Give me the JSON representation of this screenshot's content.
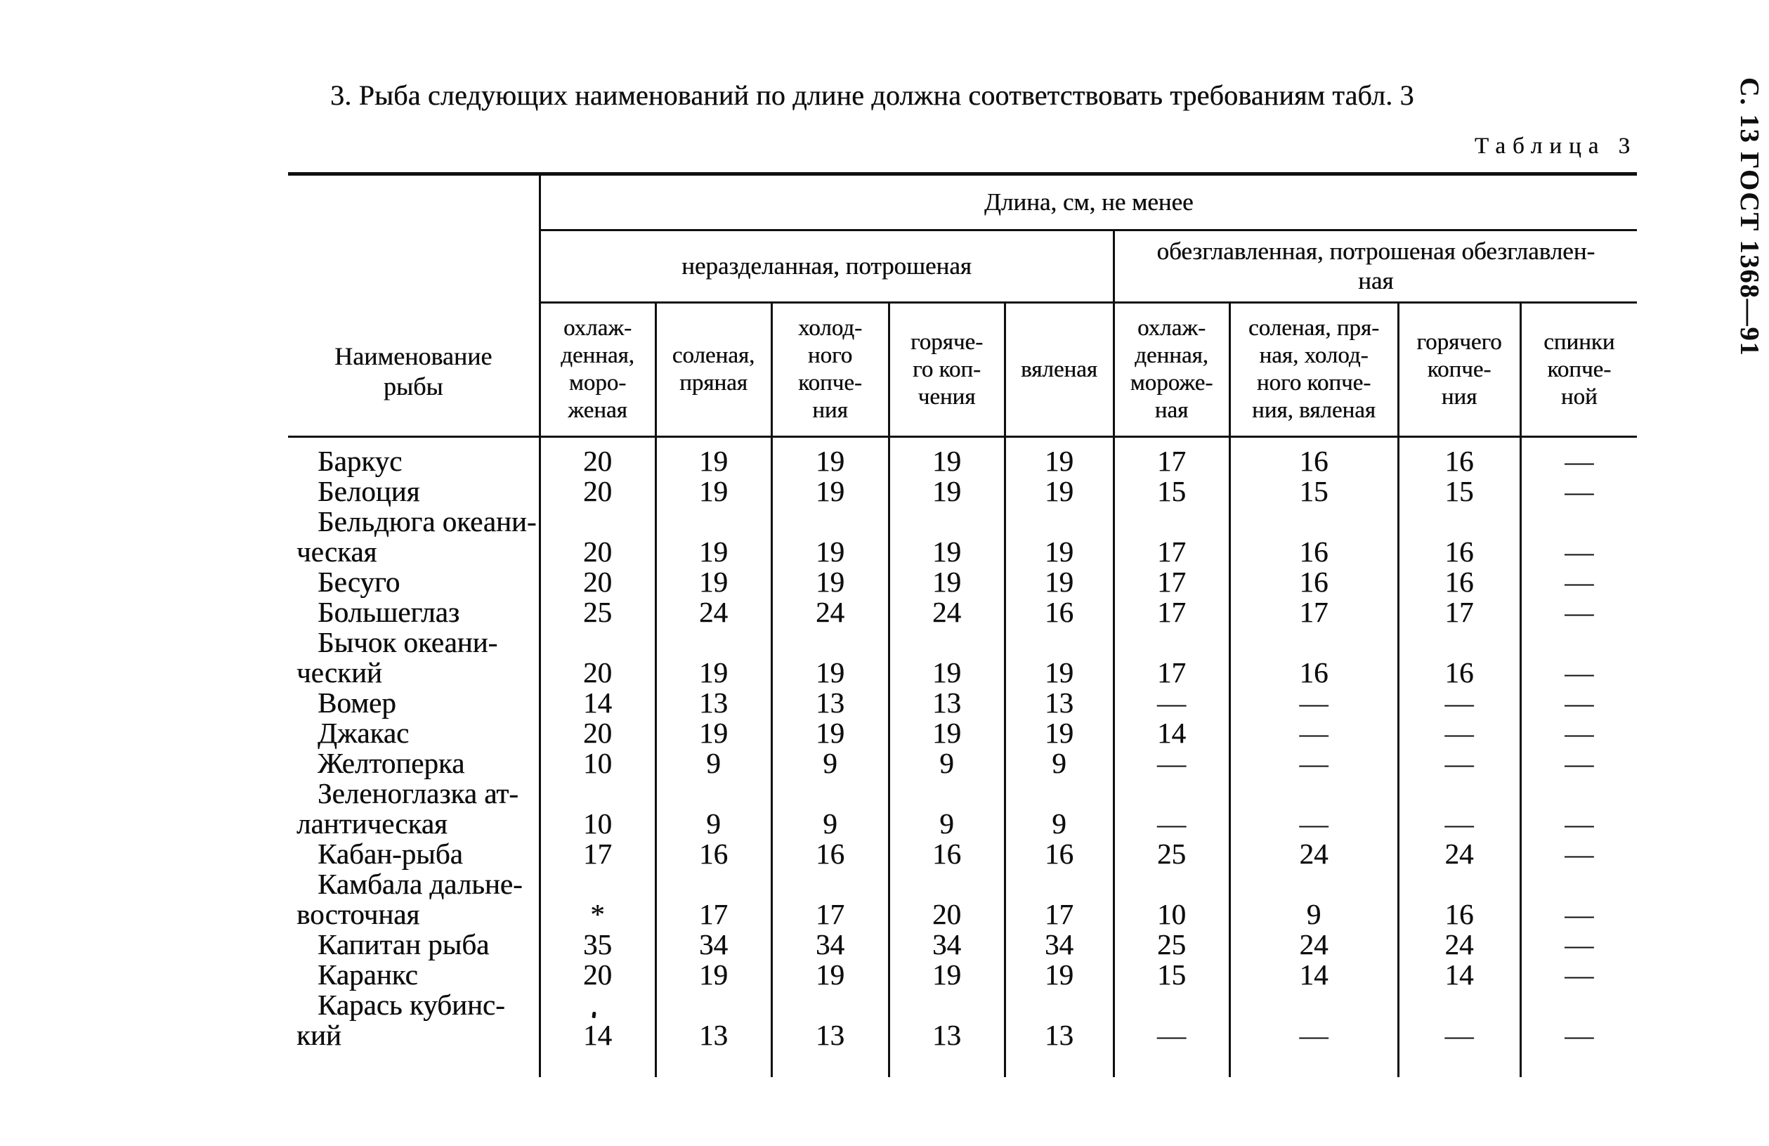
{
  "page": {
    "heading": "3. Рыба следующих наименований по длине должна соответствовать требованиям табл. 3",
    "table_label": "Таблица 3",
    "side_label": "С. 13 ГОСТ 1368—91"
  },
  "table": {
    "name_col_header": "Наименование\nрыбы",
    "length_header": "Длина, см, не менее",
    "groups": [
      {
        "label": "неразделанная, потрошеная",
        "span": 5
      },
      {
        "label": "обезглавленная, потрошеная  обезглавлен-\nная",
        "span": 4
      }
    ],
    "columns": [
      "охлаж-\nденная,\nморо-\nженая",
      "соленая,\nпряная",
      "холод-\nного\nкопче-\nния",
      "горяче-\nго коп-\nчения",
      "вяленая",
      "охлаж-\nденная,\nмороже-\nная",
      "соленая, пря-\nная, холод-\nного копче-\nния, вяленая",
      "горячего\nкопче-\nния",
      "спинки\nкопче-\nной"
    ],
    "rows": [
      {
        "name": "Баркус",
        "values": [
          "20",
          "19",
          "19",
          "19",
          "19",
          "17",
          "16",
          "16",
          "—"
        ]
      },
      {
        "name": "Белоция",
        "values": [
          "20",
          "19",
          "19",
          "19",
          "19",
          "15",
          "15",
          "15",
          "—"
        ]
      },
      {
        "name": "Бельдюга океани-\nческая",
        "values": [
          "20",
          "19",
          "19",
          "19",
          "19",
          "17",
          "16",
          "16",
          "—"
        ]
      },
      {
        "name": "Бесуго",
        "values": [
          "20",
          "19",
          "19",
          "19",
          "19",
          "17",
          "16",
          "16",
          "—"
        ]
      },
      {
        "name": "Большеглаз",
        "values": [
          "25",
          "24",
          "24",
          "24",
          "16",
          "17",
          "17",
          "17",
          "—"
        ]
      },
      {
        "name": "Бычок океани-\nческий",
        "values": [
          "20",
          "19",
          "19",
          "19",
          "19",
          "17",
          "16",
          "16",
          "—"
        ]
      },
      {
        "name": "Вомер",
        "values": [
          "14",
          "13",
          "13",
          "13",
          "13",
          "—",
          "—",
          "—",
          "—"
        ]
      },
      {
        "name": "Джакас",
        "values": [
          "20",
          "19",
          "19",
          "19",
          "19",
          "14",
          "—",
          "—",
          "—"
        ]
      },
      {
        "name": "Желтоперка",
        "values": [
          "10",
          "9",
          "9",
          "9",
          "9",
          "—",
          "—",
          "—",
          "—"
        ]
      },
      {
        "name": "Зеленоглазка ат-\nлантическая",
        "values": [
          "10",
          "9",
          "9",
          "9",
          "9",
          "—",
          "—",
          "—",
          "—"
        ]
      },
      {
        "name": "Кабан-рыба",
        "values": [
          "17",
          "16",
          "16",
          "16",
          "16",
          "25",
          "24",
          "24",
          "—"
        ]
      },
      {
        "name": "Камбала дальне-\nвосточная",
        "values": [
          "*",
          "17",
          "17",
          "20",
          "17",
          "10",
          "9",
          "16",
          "—"
        ]
      },
      {
        "name": "Капитан рыба",
        "values": [
          "35",
          "34",
          "34",
          "34",
          "34",
          "25",
          "24",
          "24",
          "—"
        ]
      },
      {
        "name": "Каранкс",
        "values": [
          "20",
          "19",
          "19",
          "19",
          "19",
          "15",
          "14",
          "14",
          "—"
        ]
      },
      {
        "name": "Карась кубинс-\nкий",
        "values": [
          "14",
          "13",
          "13",
          "13",
          "13",
          "—",
          "—",
          "—",
          "—"
        ]
      }
    ]
  }
}
